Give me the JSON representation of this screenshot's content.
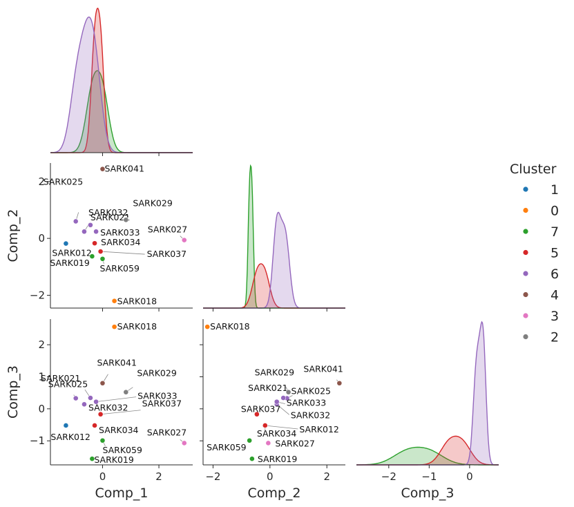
{
  "chart_data": {
    "type": "scatter",
    "variables": [
      "Comp_1",
      "Comp_2",
      "Comp_3"
    ],
    "legend": {
      "title": "Cluster",
      "placement": "right",
      "entries": [
        {
          "cluster": "1",
          "color": "#1f77b4"
        },
        {
          "cluster": "0",
          "color": "#ff7f0e"
        },
        {
          "cluster": "7",
          "color": "#2ca02c"
        },
        {
          "cluster": "5",
          "color": "#d62728"
        },
        {
          "cluster": "6",
          "color": "#9467bd"
        },
        {
          "cluster": "4",
          "color": "#8c564b"
        },
        {
          "cluster": "3",
          "color": "#e377c2"
        },
        {
          "cluster": "2",
          "color": "#7f7f7f"
        }
      ]
    },
    "xlim": {
      "Comp_1": [
        -1.85,
        3.2
      ],
      "Comp_2": [
        -2.35,
        2.65
      ],
      "Comp_3": [
        -2.8,
        0.72
      ]
    },
    "ylim": {
      "Comp_2": [
        -2.45,
        2.65
      ],
      "Comp_3": [
        -1.75,
        2.8
      ]
    },
    "ticks": {
      "Comp_1": [
        0,
        2
      ],
      "Comp_2": [
        -2,
        0,
        2
      ],
      "Comp_3": [
        -2,
        -1,
        0
      ]
    },
    "yticks": {
      "Comp_2": [
        -2,
        0,
        2
      ],
      "Comp_3": [
        -1,
        0,
        1,
        2
      ]
    },
    "points": [
      {
        "label": "SARK041",
        "cluster": "4",
        "Comp_1": 0.0,
        "Comp_2": 2.44,
        "Comp_3": 0.8
      },
      {
        "label": "SARK025",
        "cluster": "6",
        "Comp_1": -0.95,
        "Comp_2": 0.6,
        "Comp_3": 0.33
      },
      {
        "label": "SARK032",
        "cluster": "6",
        "Comp_1": -0.65,
        "Comp_2": 0.24,
        "Comp_3": 0.14
      },
      {
        "label": "SARK021",
        "cluster": "6",
        "Comp_1": -0.43,
        "Comp_2": 0.47,
        "Comp_3": 0.34
      },
      {
        "label": "SARK033",
        "cluster": "6",
        "Comp_1": -0.23,
        "Comp_2": 0.24,
        "Comp_3": 0.22
      },
      {
        "label": "SARK029",
        "cluster": "2",
        "Comp_1": 0.83,
        "Comp_2": 0.65,
        "Comp_3": 0.52
      },
      {
        "label": "SARK027",
        "cluster": "3",
        "Comp_1": 2.9,
        "Comp_2": -0.06,
        "Comp_3": -1.07
      },
      {
        "label": "SARK012",
        "cluster": "1",
        "Comp_1": -1.3,
        "Comp_2": -0.18,
        "Comp_3": -0.52
      },
      {
        "label": "SARK034",
        "cluster": "5",
        "Comp_1": -0.28,
        "Comp_2": -0.17,
        "Comp_3": -0.52
      },
      {
        "label": "SARK037",
        "cluster": "5",
        "Comp_1": -0.07,
        "Comp_2": -0.46,
        "Comp_3": -0.17
      },
      {
        "label": "SARK019",
        "cluster": "7",
        "Comp_1": -0.37,
        "Comp_2": -0.63,
        "Comp_3": -1.56
      },
      {
        "label": "SARK059",
        "cluster": "7",
        "Comp_1": 0.0,
        "Comp_2": -0.72,
        "Comp_3": -0.99
      },
      {
        "label": "SARK018",
        "cluster": "0",
        "Comp_1": 0.42,
        "Comp_2": -2.2,
        "Comp_3": 2.56
      }
    ]
  }
}
